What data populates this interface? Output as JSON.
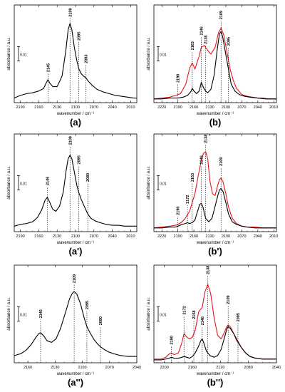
{
  "chart_data": [
    {
      "type": "line",
      "panel_label": "(a)",
      "xlabel": "wavenumber / cm⁻¹",
      "ylabel": "absorbance / a.u.",
      "scale_bar": "0.01",
      "xlim": [
        2200,
        2000
      ],
      "xticks": [
        2190,
        2160,
        2130,
        2100,
        2070,
        2040,
        2010
      ],
      "peak_labels": [
        {
          "x": 2145,
          "text": "2145",
          "y": 0.3
        },
        {
          "x": 2109,
          "text": "2109",
          "y": 0.93
        },
        {
          "x": 2095,
          "text": "2095",
          "y": 0.66
        },
        {
          "x": 2083,
          "text": "2083",
          "y": 0.4
        }
      ],
      "series": [
        {
          "color": "#000000",
          "x": [
            2200,
            2190,
            2180,
            2170,
            2160,
            2152,
            2148,
            2145,
            2142,
            2137,
            2130,
            2122,
            2116,
            2112,
            2109,
            2106,
            2102,
            2098,
            2095,
            2091,
            2087,
            2083,
            2079,
            2072,
            2065,
            2055,
            2045,
            2035,
            2025,
            2015,
            2005,
            2000
          ],
          "y": [
            0.02,
            0.05,
            0.07,
            0.08,
            0.1,
            0.13,
            0.19,
            0.23,
            0.19,
            0.15,
            0.15,
            0.27,
            0.55,
            0.8,
            0.87,
            0.8,
            0.6,
            0.45,
            0.36,
            0.3,
            0.27,
            0.25,
            0.21,
            0.16,
            0.12,
            0.09,
            0.07,
            0.05,
            0.04,
            0.03,
            0.02,
            0.02
          ]
        }
      ]
    },
    {
      "type": "line",
      "panel_label": "(b)",
      "xlabel": "wavenumber / cm⁻¹",
      "ylabel": "absorbance / a.u.",
      "scale_bar": "0.01",
      "xlim": [
        2235,
        2005
      ],
      "xticks": [
        2220,
        2190,
        2160,
        2130,
        2100,
        2070,
        2040,
        2010
      ],
      "peak_labels": [
        {
          "x": 2190,
          "text": "2190",
          "y": 0.18
        },
        {
          "x": 2163,
          "text": "2163",
          "y": 0.55
        },
        {
          "x": 2146,
          "text": "2146",
          "y": 0.72
        },
        {
          "x": 2138,
          "text": "2138",
          "y": 0.62
        },
        {
          "x": 2109,
          "text": "2109",
          "y": 0.9
        },
        {
          "x": 2095,
          "text": "2095",
          "y": 0.6
        }
      ],
      "series": [
        {
          "color": "#e8141c",
          "x": [
            2235,
            2220,
            2205,
            2195,
            2190,
            2185,
            2175,
            2168,
            2163,
            2158,
            2150,
            2146,
            2140,
            2135,
            2128,
            2120,
            2114,
            2109,
            2104,
            2098,
            2092,
            2086,
            2080,
            2070,
            2060,
            2050,
            2040,
            2030,
            2020,
            2010,
            2005
          ],
          "y": [
            0.01,
            0.02,
            0.03,
            0.05,
            0.06,
            0.07,
            0.18,
            0.36,
            0.42,
            0.35,
            0.5,
            0.6,
            0.62,
            0.57,
            0.52,
            0.6,
            0.76,
            0.82,
            0.74,
            0.55,
            0.35,
            0.22,
            0.13,
            0.06,
            0.04,
            0.03,
            0.02,
            0.02,
            0.01,
            0.01,
            0.01
          ]
        },
        {
          "color": "#000000",
          "x": [
            2235,
            2220,
            2205,
            2195,
            2190,
            2180,
            2172,
            2166,
            2163,
            2160,
            2155,
            2150,
            2146,
            2142,
            2138,
            2134,
            2128,
            2122,
            2116,
            2112,
            2109,
            2106,
            2101,
            2096,
            2090,
            2083,
            2075,
            2065,
            2055,
            2040,
            2025,
            2005
          ],
          "y": [
            0.01,
            0.01,
            0.02,
            0.02,
            0.02,
            0.03,
            0.05,
            0.09,
            0.13,
            0.1,
            0.07,
            0.1,
            0.2,
            0.14,
            0.1,
            0.08,
            0.12,
            0.28,
            0.58,
            0.75,
            0.78,
            0.72,
            0.55,
            0.38,
            0.18,
            0.1,
            0.06,
            0.04,
            0.03,
            0.02,
            0.01,
            0.01
          ]
        }
      ]
    },
    {
      "type": "line",
      "panel_label": "(a')",
      "xlabel": "wavenumber / cm⁻¹",
      "ylabel": "absorbance / a.u.",
      "scale_bar": "0.01",
      "xlim": [
        2200,
        2000
      ],
      "xticks": [
        2190,
        2160,
        2130,
        2100,
        2070,
        2040,
        2010
      ],
      "peak_labels": [
        {
          "x": 2146,
          "text": "2146",
          "y": 0.48
        },
        {
          "x": 2109,
          "text": "2109",
          "y": 0.94
        },
        {
          "x": 2095,
          "text": "2095",
          "y": 0.72
        },
        {
          "x": 2080,
          "text": "2080",
          "y": 0.52
        }
      ],
      "series": [
        {
          "color": "#000000",
          "x": [
            2200,
            2190,
            2180,
            2170,
            2162,
            2155,
            2150,
            2146,
            2142,
            2137,
            2132,
            2126,
            2120,
            2115,
            2112,
            2109,
            2106,
            2102,
            2098,
            2095,
            2091,
            2086,
            2080,
            2075,
            2068,
            2060,
            2050,
            2040,
            2030,
            2020,
            2010,
            2000
          ],
          "y": [
            0.03,
            0.05,
            0.06,
            0.08,
            0.13,
            0.22,
            0.32,
            0.36,
            0.3,
            0.22,
            0.2,
            0.26,
            0.42,
            0.68,
            0.8,
            0.84,
            0.8,
            0.65,
            0.5,
            0.42,
            0.34,
            0.26,
            0.17,
            0.12,
            0.09,
            0.07,
            0.05,
            0.04,
            0.04,
            0.03,
            0.03,
            0.03
          ]
        }
      ]
    },
    {
      "type": "line",
      "panel_label": "(b')",
      "xlabel": "wavenumber / cm⁻¹",
      "ylabel": "absorbance / a.u.",
      "scale_bar": "0.01",
      "xlim": [
        2235,
        2005
      ],
      "xticks": [
        2220,
        2190,
        2160,
        2130,
        2100,
        2070,
        2040,
        2010
      ],
      "peak_labels": [
        {
          "x": 2190,
          "text": "2190",
          "y": 0.14
        },
        {
          "x": 2172,
          "text": "2172",
          "y": 0.27
        },
        {
          "x": 2163,
          "text": "2163",
          "y": 0.52
        },
        {
          "x": 2146,
          "text": "2146",
          "y": 0.72
        },
        {
          "x": 2138,
          "text": "2138",
          "y": 0.96
        },
        {
          "x": 2109,
          "text": "2109",
          "y": 0.7
        }
      ],
      "series": [
        {
          "color": "#e8141c",
          "x": [
            2235,
            2220,
            2205,
            2195,
            2190,
            2182,
            2176,
            2172,
            2168,
            2163,
            2158,
            2152,
            2146,
            2142,
            2138,
            2134,
            2130,
            2125,
            2120,
            2116,
            2112,
            2109,
            2105,
            2100,
            2095,
            2088,
            2080,
            2070,
            2060,
            2045,
            2030,
            2005
          ],
          "y": [
            0.01,
            0.02,
            0.03,
            0.04,
            0.05,
            0.08,
            0.12,
            0.16,
            0.2,
            0.3,
            0.4,
            0.6,
            0.78,
            0.86,
            0.88,
            0.8,
            0.55,
            0.4,
            0.38,
            0.48,
            0.56,
            0.58,
            0.53,
            0.4,
            0.25,
            0.12,
            0.06,
            0.03,
            0.02,
            0.02,
            0.01,
            0.01
          ]
        },
        {
          "color": "#000000",
          "x": [
            2235,
            2220,
            2205,
            2195,
            2190,
            2182,
            2176,
            2172,
            2168,
            2163,
            2158,
            2152,
            2149,
            2146,
            2143,
            2138,
            2132,
            2126,
            2120,
            2115,
            2112,
            2109,
            2105,
            2100,
            2095,
            2088,
            2080,
            2070,
            2060,
            2045,
            2030,
            2005
          ],
          "y": [
            0.01,
            0.01,
            0.02,
            0.02,
            0.03,
            0.05,
            0.06,
            0.07,
            0.06,
            0.07,
            0.1,
            0.22,
            0.28,
            0.29,
            0.25,
            0.12,
            0.08,
            0.12,
            0.26,
            0.38,
            0.44,
            0.46,
            0.42,
            0.3,
            0.17,
            0.08,
            0.05,
            0.03,
            0.02,
            0.01,
            0.01,
            0.01
          ]
        }
      ]
    },
    {
      "type": "line",
      "panel_label": "(a'')",
      "xlabel": "wavenumber / cm⁻¹",
      "ylabel": "absorbance / a.u.",
      "scale_bar": "0.01",
      "xlim": [
        2175,
        2040
      ],
      "xticks": [
        2160,
        2130,
        2100,
        2070,
        2040
      ],
      "peak_labels": [
        {
          "x": 2146,
          "text": "2146",
          "y": 0.46
        },
        {
          "x": 2109,
          "text": "2109",
          "y": 0.86
        },
        {
          "x": 2095,
          "text": "2095",
          "y": 0.56
        },
        {
          "x": 2080,
          "text": "2080",
          "y": 0.38
        }
      ],
      "series": [
        {
          "color": "#000000",
          "x": [
            2175,
            2168,
            2162,
            2156,
            2151,
            2148,
            2146,
            2143,
            2139,
            2134,
            2129,
            2124,
            2118,
            2114,
            2111,
            2109,
            2106,
            2102,
            2098,
            2095,
            2091,
            2087,
            2083,
            2080,
            2076,
            2071,
            2065,
            2058,
            2050,
            2040
          ],
          "y": [
            0.05,
            0.07,
            0.11,
            0.18,
            0.26,
            0.3,
            0.31,
            0.28,
            0.22,
            0.2,
            0.24,
            0.36,
            0.56,
            0.7,
            0.76,
            0.78,
            0.75,
            0.64,
            0.48,
            0.38,
            0.3,
            0.23,
            0.18,
            0.15,
            0.12,
            0.09,
            0.07,
            0.05,
            0.04,
            0.04
          ]
        }
      ]
    },
    {
      "type": "line",
      "panel_label": "(b'')",
      "xlabel": "wavenumber / cm⁻¹",
      "ylabel": "absorbance / a.u.",
      "scale_bar": "0.01",
      "xlim": [
        2215,
        2040
      ],
      "xticks": [
        2200,
        2160,
        2120,
        2080,
        2040
      ],
      "peak_labels": [
        {
          "x": 2190,
          "text": "2190",
          "y": 0.16
        },
        {
          "x": 2172,
          "text": "2172",
          "y": 0.5
        },
        {
          "x": 2158,
          "text": "2158",
          "y": 0.45
        },
        {
          "x": 2146,
          "text": "2146",
          "y": 0.38
        },
        {
          "x": 2138,
          "text": "2138",
          "y": 0.96
        },
        {
          "x": 2109,
          "text": "2109",
          "y": 0.62
        },
        {
          "x": 2095,
          "text": "2095",
          "y": 0.42
        }
      ],
      "series": [
        {
          "color": "#e8141c",
          "x": [
            2215,
            2205,
            2198,
            2193,
            2190,
            2186,
            2180,
            2175,
            2172,
            2168,
            2164,
            2160,
            2156,
            2151,
            2146,
            2142,
            2138,
            2134,
            2129,
            2124,
            2119,
            2114,
            2111,
            2109,
            2106,
            2101,
            2097,
            2095,
            2090,
            2084,
            2078,
            2070,
            2060,
            2050,
            2040
          ],
          "y": [
            0.01,
            0.01,
            0.03,
            0.07,
            0.08,
            0.06,
            0.08,
            0.2,
            0.3,
            0.26,
            0.24,
            0.26,
            0.34,
            0.55,
            0.6,
            0.78,
            0.86,
            0.76,
            0.48,
            0.28,
            0.24,
            0.32,
            0.38,
            0.4,
            0.38,
            0.3,
            0.22,
            0.2,
            0.14,
            0.08,
            0.04,
            0.02,
            0.01,
            0.01,
            0.01
          ]
        },
        {
          "color": "#000000",
          "x": [
            2215,
            2205,
            2198,
            2193,
            2190,
            2186,
            2180,
            2175,
            2172,
            2168,
            2164,
            2160,
            2156,
            2151,
            2148,
            2146,
            2144,
            2140,
            2135,
            2129,
            2124,
            2119,
            2114,
            2111,
            2109,
            2106,
            2101,
            2097,
            2095,
            2090,
            2084,
            2078,
            2070,
            2060,
            2050,
            2040
          ],
          "y": [
            0.0,
            0.0,
            0.01,
            0.02,
            0.03,
            0.02,
            0.02,
            0.03,
            0.04,
            0.03,
            0.02,
            0.04,
            0.08,
            0.16,
            0.22,
            0.24,
            0.2,
            0.1,
            0.05,
            0.03,
            0.05,
            0.12,
            0.26,
            0.35,
            0.38,
            0.36,
            0.3,
            0.24,
            0.21,
            0.14,
            0.08,
            0.04,
            0.02,
            0.01,
            0.01,
            0.01
          ]
        }
      ]
    }
  ]
}
